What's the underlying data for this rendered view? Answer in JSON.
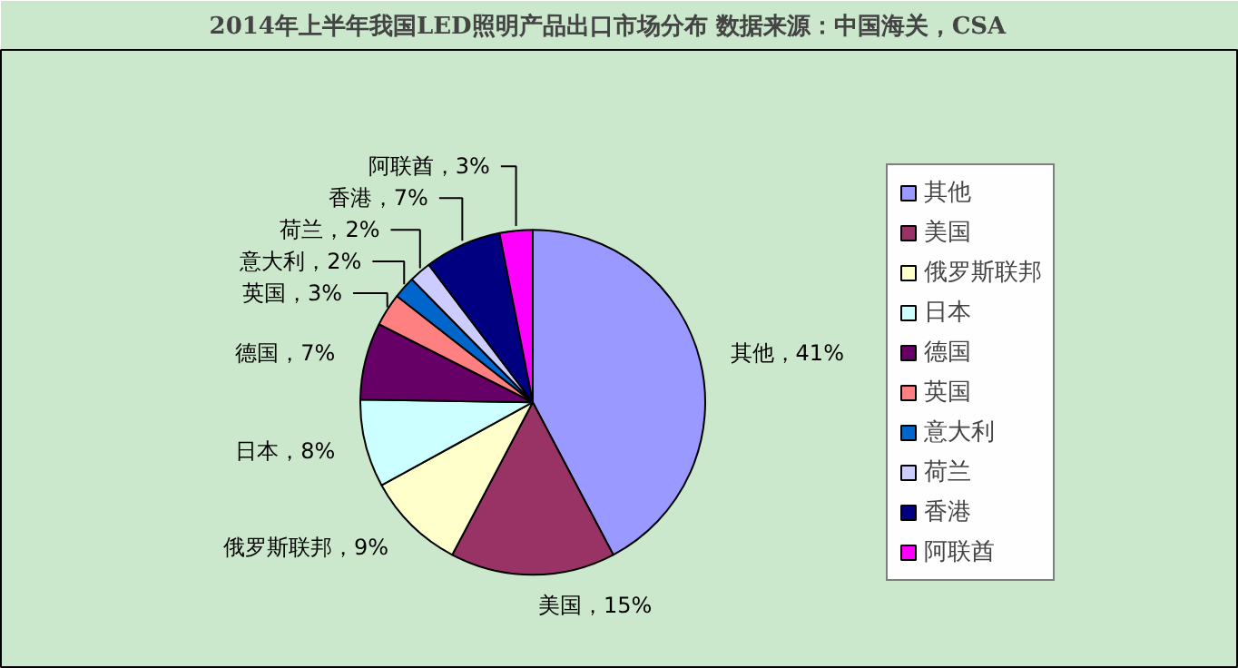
{
  "chart_data": {
    "type": "pie",
    "title": "2014年上半年我国LED照明产品出口市场分布    数据来源：中国海关，CSA",
    "categories": [
      "其他",
      "美国",
      "俄罗斯联邦",
      "日本",
      "德国",
      "英国",
      "意大利",
      "荷兰",
      "香港",
      "阿联酋"
    ],
    "values": [
      41,
      15,
      9,
      8,
      7,
      3,
      2,
      2,
      7,
      3
    ],
    "value_labels": [
      "其他，41%",
      "美国，15%",
      "俄罗斯联邦，9%",
      "日本，8%",
      "德国，7%",
      "英国，3%",
      "意大利，2%",
      "荷兰，2%",
      "香港，7%",
      "阿联酋，3%"
    ],
    "colors": [
      "#9999ff",
      "#993366",
      "#ffffcc",
      "#ccffff",
      "#660066",
      "#ff8080",
      "#0066cc",
      "#ccccff",
      "#000080",
      "#ff00ff"
    ],
    "legend": "right"
  }
}
